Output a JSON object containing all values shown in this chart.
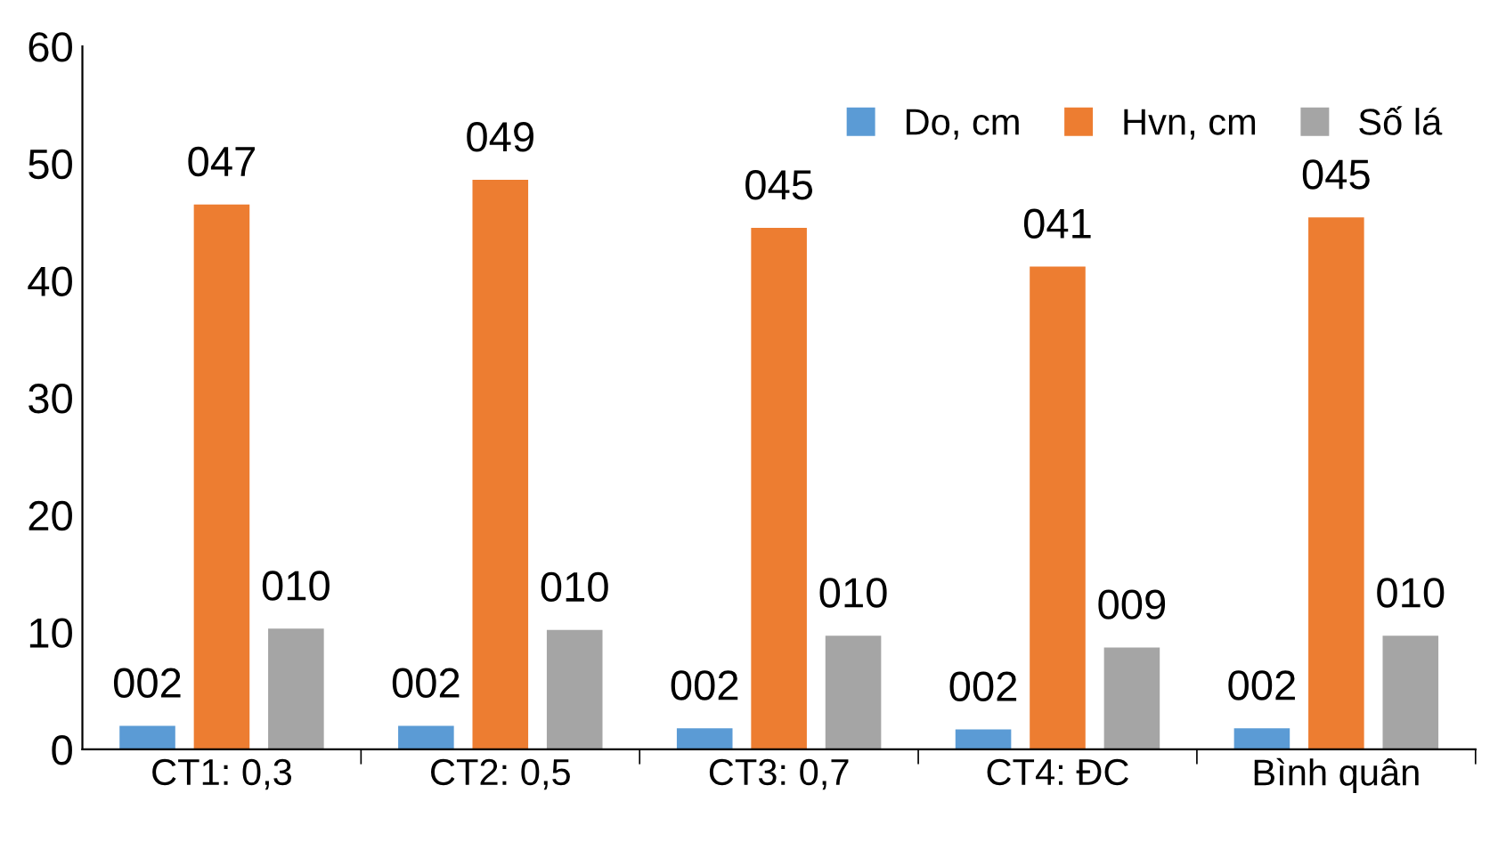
{
  "chart_data": {
    "type": "bar",
    "categories": [
      "CT1: 0,3",
      "CT2: 0,5",
      "CT3: 0,7",
      "CT4: ĐC",
      "Bình quân"
    ],
    "series": [
      {
        "name": "Do, cm",
        "color": "#5b9bd5",
        "values": [
          2.0,
          2.0,
          1.8,
          1.7,
          1.8
        ],
        "value_labels": [
          "002",
          "002",
          "002",
          "002",
          "002"
        ]
      },
      {
        "name": "Hvn, cm",
        "color": "#ed7d31",
        "values": [
          46.5,
          48.6,
          44.5,
          41.2,
          45.4
        ],
        "value_labels": [
          "047",
          "049",
          "045",
          "041",
          "045"
        ]
      },
      {
        "name": "Số lá",
        "color": "#a5a5a5",
        "values": [
          10.3,
          10.2,
          9.7,
          8.7,
          9.7
        ],
        "value_labels": [
          "010",
          "010",
          "010",
          "009",
          "010"
        ]
      }
    ],
    "ylim": [
      0,
      60
    ],
    "yticks": [
      0,
      10,
      20,
      30,
      40,
      50,
      60
    ],
    "grid": false,
    "legend": "top right"
  }
}
